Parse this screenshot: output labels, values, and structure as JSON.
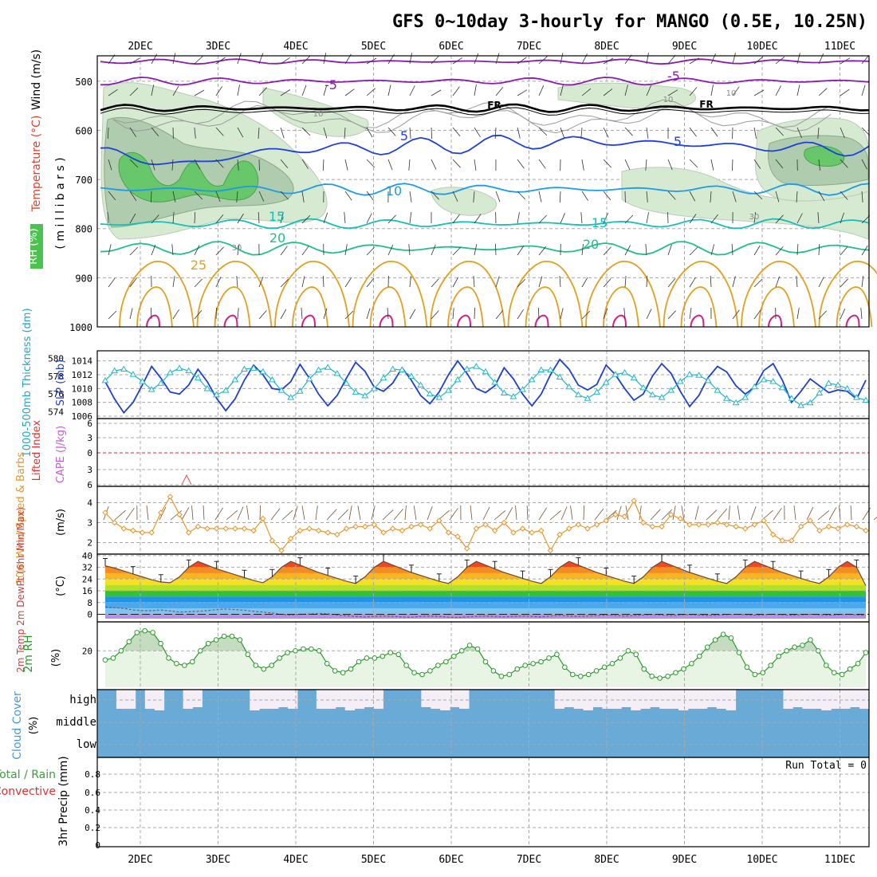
{
  "title": "GFS 0~10day 3-hourly for MANGO (0.5E, 10.25N)",
  "dates": [
    "2DEC",
    "3DEC",
    "4DEC",
    "5DEC",
    "6DEC",
    "7DEC",
    "8DEC",
    "9DEC",
    "10DEC",
    "11DEC"
  ],
  "colors": {
    "frame": "#000000",
    "grid": "#a8a8a8",
    "temp_purple": "#8a1ab0",
    "temp_black": "#000000",
    "temp_blue": "#1e3fe0",
    "temp_lightblue": "#1e9be8",
    "temp_teal": "#17bfb5",
    "temp_green": "#1fbf8a",
    "temp_orange": "#e0a020",
    "slp_line": "#1e3fd0",
    "thickness_line": "#20b8c8",
    "li_zero": "#e02020",
    "cape": "#d060d0",
    "wind_line": "#e8962a",
    "rh_line": "#2a9a2a",
    "rh_fill": "#e8f4e4",
    "cloud": "#6aaad6",
    "cloud_bg": "#f4eef6",
    "barb": "#303030",
    "barb_10m": "#7a5030"
  },
  "chart_data": [
    {
      "type": "contour",
      "panel": "upper-air",
      "ylabel_parts": [
        "RH (%)",
        "Temperature (°C)",
        "Wind (m/s)"
      ],
      "ylabel2": "( m i l l i b a r s )",
      "y_ticks": [
        500,
        600,
        700,
        800,
        900,
        1000
      ],
      "ylim": [
        450,
        1000
      ],
      "labels": [
        {
          "text": "-5",
          "series": "-5"
        },
        {
          "text": "-5",
          "series": "-5"
        },
        {
          "text": "FR",
          "series": "0"
        },
        {
          "text": "FR",
          "series": "0"
        },
        {
          "text": "5",
          "series": "5"
        },
        {
          "text": "5",
          "series": "5"
        },
        {
          "text": "10",
          "series": "10"
        },
        {
          "text": "15",
          "series": "15"
        },
        {
          "text": "15",
          "series": "15"
        },
        {
          "text": "20",
          "series": "20"
        },
        {
          "text": "20",
          "series": "20"
        },
        {
          "text": "25",
          "series": "25"
        },
        {
          "text": "10",
          "series": "rh"
        },
        {
          "text": "10",
          "series": "rh"
        },
        {
          "text": "10",
          "series": "rh"
        },
        {
          "text": "30",
          "series": "rh"
        },
        {
          "text": "30",
          "series": "rh"
        }
      ],
      "isotherm_levels": [
        {
          "series": "-6",
          "base": 460,
          "amp": 5
        },
        {
          "series": "-5",
          "base": 500,
          "amp": 8
        },
        {
          "series": "0",
          "base": 555,
          "amp": 8
        },
        {
          "series": "5",
          "base": 638,
          "amp": 18
        },
        {
          "series": "10",
          "base": 720,
          "amp": 12
        },
        {
          "series": "15",
          "base": 790,
          "amp": 10
        },
        {
          "series": "20",
          "base": 840,
          "amp": 14
        }
      ]
    },
    {
      "type": "line",
      "panel": "slp-thickness",
      "ylabel_left": "1000-500mb Thickness (dm)",
      "ylabel_right": "SLP (mb)",
      "left_ticks": [
        574,
        576,
        578,
        580
      ],
      "right_ticks": [
        1006,
        1008,
        1010,
        1012,
        1014
      ],
      "ylim_slp": [
        1006,
        1015
      ],
      "series": [
        {
          "name": "SLP",
          "values": [
            1011,
            1008.5,
            1006.5,
            1008,
            1010.5,
            1013.2,
            1011.5,
            1009.5,
            1009.2,
            1010.5,
            1012.8,
            1011,
            1008.6,
            1006.8,
            1008.5,
            1011.2,
            1013.4,
            1012,
            1010,
            1009.8,
            1011,
            1013.5,
            1011.5,
            1009.2,
            1007.5,
            1009,
            1011.5,
            1013.8,
            1012.5,
            1010.2,
            1009.6,
            1010.8,
            1013,
            1011.2,
            1009,
            1007.8,
            1009.5,
            1012,
            1014,
            1012.2,
            1010,
            1009.4,
            1010.4,
            1013,
            1011.4,
            1009.2,
            1007.5,
            1009.2,
            1012,
            1014.2,
            1012.8,
            1010.5,
            1009.8,
            1010.6,
            1013.4,
            1012,
            1010,
            1008.3,
            1009.2,
            1011.8,
            1013.6,
            1012.2,
            1009.6,
            1007.4,
            1009,
            1011.6,
            1013.2,
            1012.4,
            1010.4,
            1009.2,
            1010.2,
            1012.6,
            1013.6,
            1011.2,
            1008,
            1009.6,
            1011.4,
            1010.4,
            1009.4,
            1009.8,
            1009.6,
            1008.5,
            1011.2
          ]
        },
        {
          "name": "Thickness",
          "values": [
            577.5,
            578.6,
            578.8,
            578.2,
            577.4,
            576.5,
            577.2,
            578.4,
            578.9,
            578.6,
            577.8,
            576.6,
            575.9,
            576.4,
            577.6,
            578.8,
            578.9,
            578.5,
            577.6,
            576.4,
            575.6,
            576.3,
            577.7,
            578.7,
            579.0,
            578.3,
            577.2,
            576.2,
            575.8,
            576.6,
            577.8,
            578.8,
            578.7,
            578.0,
            577.0,
            576.0,
            575.6,
            576.4,
            577.6,
            578.8,
            579.1,
            578.5,
            577.3,
            576.1,
            575.7,
            576.5,
            577.6,
            578.7,
            578.7,
            577.9,
            576.8,
            575.9,
            575.5,
            576.2,
            577.3,
            578.2,
            578.4,
            577.8,
            576.7,
            575.9,
            575.6,
            576.4,
            577.4,
            578.2,
            578.1,
            577.5,
            576.4,
            575.5,
            575.0,
            575.6,
            576.8,
            577.6,
            577.4,
            576.7,
            575.5,
            574.7,
            575.0,
            576.1,
            577.2,
            577.0,
            576.6,
            575.6,
            575.3
          ]
        }
      ]
    },
    {
      "type": "line",
      "panel": "lifted-cape",
      "ylabel_left": "Lifted Index",
      "ylabel_right": "CAPE (J/kg)",
      "y_ticks": [
        "6",
        "3",
        "0",
        "3",
        "6"
      ],
      "ylim": [
        -6,
        6
      ]
    },
    {
      "type": "line",
      "panel": "wind-10m",
      "ylabel": "10m Wind Speed & Barbs",
      "ylabel_unit": "(m/s)",
      "y_ticks": [
        2,
        3,
        4
      ],
      "ylim": [
        1.5,
        4.7
      ],
      "series": [
        {
          "name": "Speed",
          "values": [
            3.5,
            3.0,
            2.7,
            2.6,
            2.5,
            2.5,
            3.5,
            4.3,
            3.4,
            2.5,
            2.8,
            2.7,
            2.7,
            2.7,
            2.7,
            2.7,
            2.6,
            3.2,
            2.1,
            1.6,
            2.2,
            2.6,
            2.7,
            2.6,
            2.5,
            2.4,
            2.7,
            2.8,
            2.8,
            2.9,
            2.5,
            2.7,
            2.6,
            2.8,
            2.9,
            2.7,
            3.1,
            2.5,
            2.3,
            1.7,
            2.7,
            2.9,
            2.6,
            3.0,
            2.5,
            2.7,
            2.5,
            2.6,
            1.6,
            2.4,
            2.7,
            2.9,
            2.7,
            2.9,
            3.1,
            3.4,
            3.3,
            4.1,
            3.0,
            2.8,
            2.8,
            3.4,
            3.2,
            2.9,
            2.9,
            2.9,
            3.0,
            2.9,
            2.8,
            2.7,
            2.9,
            3.1,
            2.4,
            2.1,
            2.1,
            2.8,
            3.1,
            2.6,
            2.8,
            2.7,
            2.9,
            2.8,
            2.6
          ]
        }
      ]
    },
    {
      "type": "area",
      "panel": "temp-2m",
      "ylabel": "2m Temp 2m DewPt (6hr Min/Max)",
      "ylabel_unit": "(°C)",
      "y_ticks": [
        0,
        8,
        16,
        24,
        32,
        40
      ],
      "ylim": [
        -3,
        41
      ],
      "series": [
        {
          "name": "2m Temp",
          "values": [
            33,
            31.5,
            29.5,
            27.5,
            25.5,
            23.5,
            22,
            21.5,
            25.5,
            32,
            36,
            33.5,
            31,
            29,
            27,
            25,
            23,
            21.5,
            25.5,
            32,
            36,
            33.5,
            31,
            28.5,
            26.5,
            24.5,
            22.5,
            21,
            25.5,
            32,
            36,
            33.5,
            31,
            28.5,
            26.5,
            24.5,
            22.5,
            21,
            25.5,
            32,
            36,
            33.5,
            31,
            28.5,
            26.5,
            24.5,
            22.5,
            21,
            25.5,
            32,
            36,
            33.5,
            31,
            28.5,
            26.5,
            24.5,
            22.5,
            21,
            25.5,
            32,
            36,
            33.5,
            31,
            28.5,
            26.5,
            24.5,
            22.5,
            21,
            25.5,
            32,
            36,
            33.5,
            31,
            28.5,
            26.5,
            24.5,
            22.5,
            21,
            25.5,
            32,
            36,
            32,
            19.5
          ]
        },
        {
          "name": "2m DewPt",
          "values": [
            5,
            4.5,
            4,
            3,
            2.5,
            2.5,
            3,
            2.2,
            1.5,
            1.8,
            2,
            2.5,
            3.2,
            3.5,
            3.2,
            2.8,
            2,
            1.5,
            0.8,
            0,
            -0.5,
            0,
            0.2,
            0.5,
            0.3,
            -0.5,
            -1,
            -1.5,
            -1.8,
            -1.5,
            -1.2,
            -1.5,
            -1.8,
            -2,
            -1.5,
            -1.2,
            -1.5,
            -2,
            -2.2,
            -1.8,
            -1.5,
            -1.2,
            -1.5,
            -1.8,
            -1.5,
            -1.2,
            -1.5,
            -1.8,
            -1.2,
            -0.8,
            -1.2,
            -1.5,
            -1.2,
            -0.8,
            -0.5,
            -0.8,
            -1.2,
            -0.8,
            -0.5,
            -0.2,
            -0.5,
            -0.8,
            -0.5,
            -0.2,
            -0.5,
            -0.8,
            -0.5,
            -0.2,
            0,
            -0.3,
            -0.6,
            -0.3,
            0,
            -0.3,
            -0.6,
            -0.3,
            0,
            -0.3,
            -0.6,
            -0.3,
            0,
            -0.4,
            -0.8
          ]
        }
      ]
    },
    {
      "type": "area",
      "panel": "rh-2m",
      "ylabel": "2m RH",
      "ylabel_unit": "(%)",
      "y_ticks": [
        20
      ],
      "ylim": [
        0,
        35
      ],
      "series": [
        {
          "name": "2m RH",
          "values": [
            15,
            16,
            20,
            25,
            30,
            31,
            30,
            24,
            16,
            13,
            12,
            14,
            20,
            24,
            26,
            28,
            28,
            26,
            18,
            12,
            10,
            12,
            16,
            19,
            20,
            21,
            21,
            20,
            13,
            9,
            8,
            10,
            14,
            16,
            16,
            17,
            19,
            18,
            12,
            8,
            7,
            9,
            12,
            14,
            17,
            20,
            23,
            21,
            14,
            9,
            6,
            7,
            10,
            12,
            13,
            14,
            16,
            18,
            11,
            7,
            6,
            7,
            9,
            11,
            13,
            16,
            20,
            18,
            10,
            6,
            5,
            6,
            8,
            10,
            13,
            17,
            22,
            26,
            29,
            27,
            19,
            11,
            7,
            8,
            12,
            17,
            20,
            22,
            23,
            26,
            20,
            12,
            8,
            7,
            10,
            13,
            19
          ]
        }
      ]
    },
    {
      "type": "bar",
      "panel": "cloud-cover",
      "ylabel": "Cloud Cover",
      "ylabel_unit": "(%)",
      "y_ticks": [
        "high",
        "middle",
        "low"
      ],
      "high_gaps": [
        1,
        2,
        4,
        5,
        8,
        9,
        15,
        16,
        17,
        18,
        19,
        22,
        23,
        24,
        25,
        26,
        27,
        28,
        33,
        34,
        35,
        36,
        37,
        47,
        48,
        49,
        50,
        51,
        52,
        53,
        54,
        55,
        56,
        57,
        58,
        59,
        60,
        61,
        62,
        63,
        64,
        65,
        71,
        72,
        73,
        74,
        75,
        76,
        77,
        78,
        79
      ]
    },
    {
      "type": "bar",
      "panel": "precip",
      "ylabel": "3hr Precip (mm)",
      "legend_parts": [
        "Total / Rain",
        "Convective"
      ],
      "run_total": "Run Total = 0",
      "y_ticks": [
        "0",
        "0.2",
        "0.4",
        "0.6",
        "0.8"
      ],
      "ylim": [
        0,
        1
      ]
    }
  ]
}
